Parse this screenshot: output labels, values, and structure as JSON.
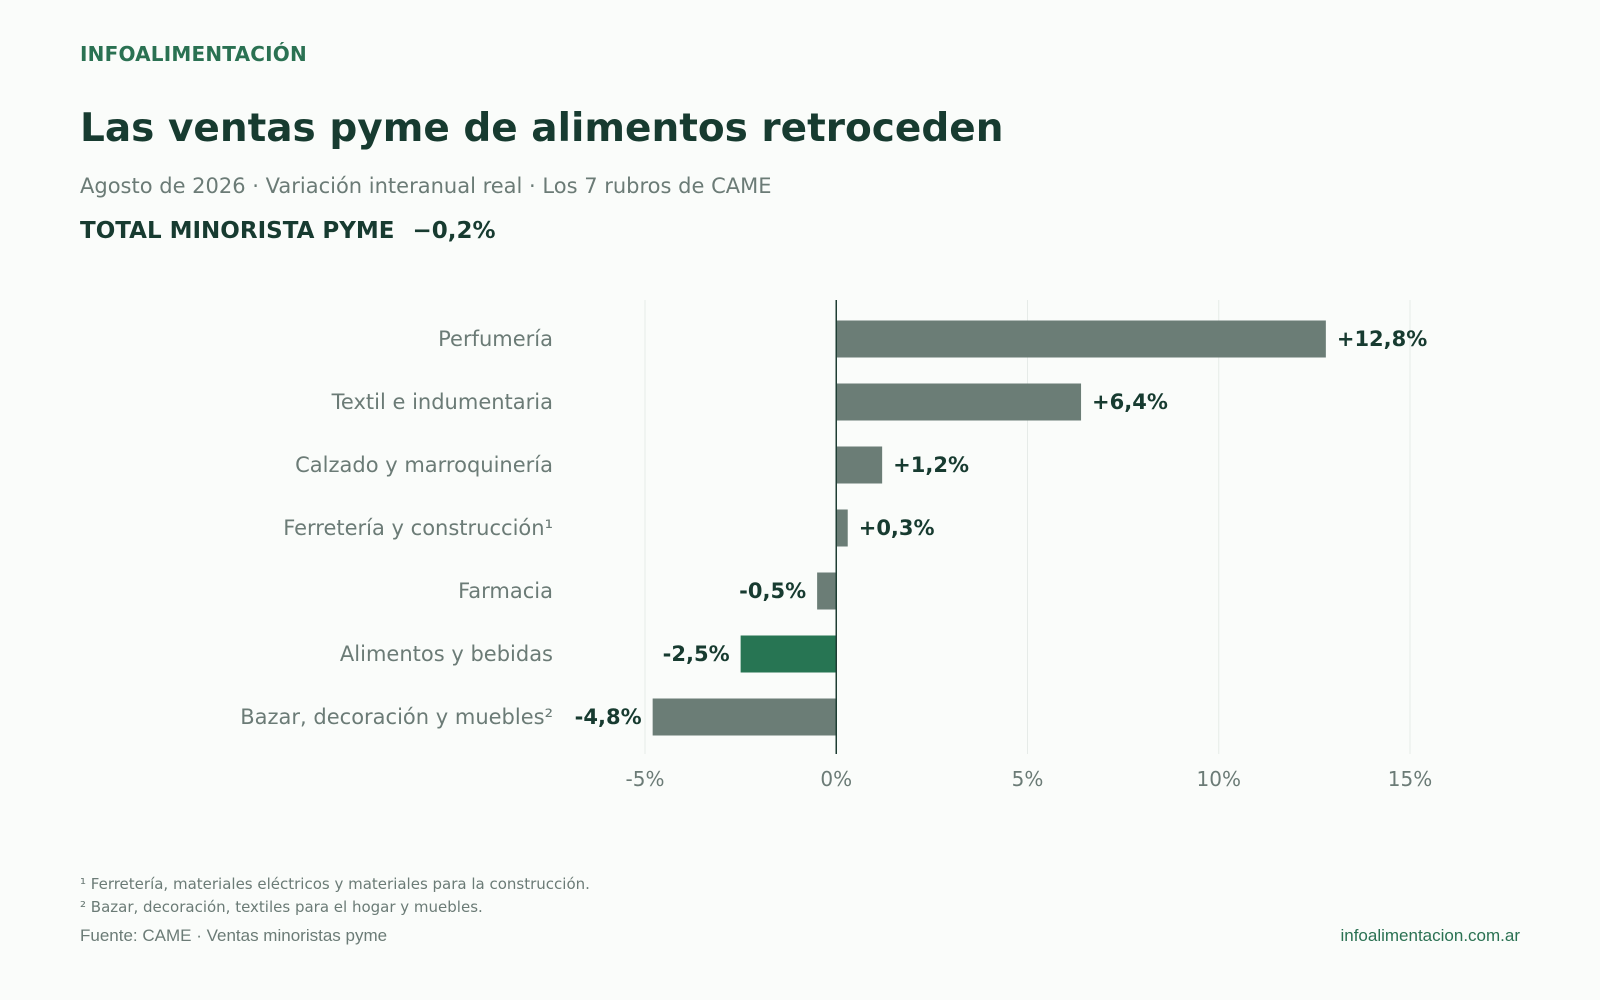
{
  "header": {
    "brand": "INFOALIMENTACIÓN",
    "title": "Las ventas pyme de alimentos retroceden",
    "subtitle": "Agosto de 2026 · Variación interanual real · Los 7 rubros de CAME",
    "total_label": "TOTAL MINORISTA PYME",
    "total_value": "−0,2%"
  },
  "chart_data": {
    "type": "bar",
    "orientation": "horizontal",
    "categories": [
      "Perfumería",
      "Textil e indumentaria",
      "Calzado y marroquinería",
      "Ferretería y construcción¹",
      "Farmacia",
      "Alimentos y bebidas",
      "Bazar, decoración y muebles²"
    ],
    "values": [
      12.8,
      6.4,
      1.2,
      0.3,
      -0.5,
      -2.5,
      -4.8
    ],
    "data_labels": [
      "+12,8%",
      "+6,4%",
      "+1,2%",
      "+0,3%",
      "-0,5%",
      "-2,5%",
      "-4,8%"
    ],
    "highlight_category": "Alimentos y bebidas",
    "xlim": [
      -5,
      15
    ],
    "xticks": [
      -5,
      0,
      5,
      10,
      15
    ],
    "xtick_labels": [
      "-5%",
      "0%",
      "5%",
      "10%",
      "15%"
    ],
    "grid": true,
    "colors": {
      "bar": "#6b7d76",
      "highlight": "#277553",
      "zero_line": "#1e3d33",
      "grid": "#e6ebe8"
    }
  },
  "footer": {
    "note1": "¹ Ferretería, materiales eléctricos y materiales para la construcción.",
    "note2": "² Bazar, decoración, textiles para el hogar y muebles.",
    "source": "Fuente: CAME · Ventas minoristas pyme",
    "url": "infoalimentacion.com.ar"
  }
}
